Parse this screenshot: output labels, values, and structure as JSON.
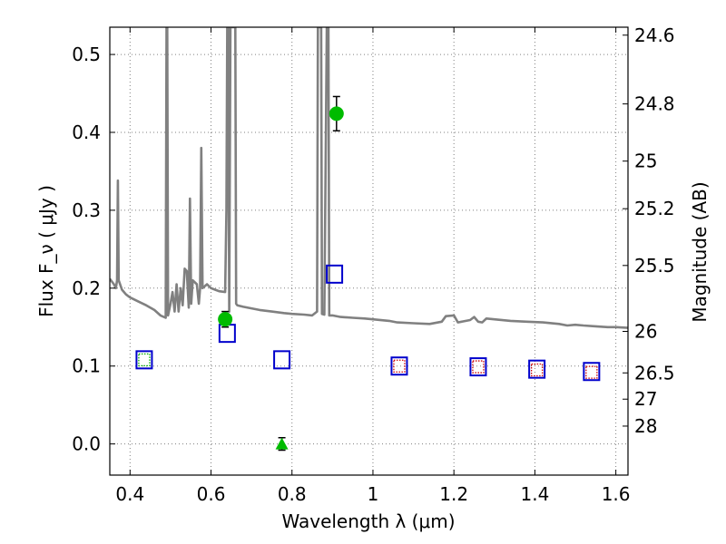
{
  "chart_data": {
    "type": "scatter",
    "title": "",
    "xlabel": "Wavelength  λ (μm)",
    "ylabel": "Flux  F_ν  ( μJy )",
    "y2label": "Magnitude (AB)",
    "xlim": [
      0.35,
      1.63
    ],
    "ylim": [
      -0.04,
      0.535
    ],
    "x_ticks": [
      0.4,
      0.6,
      0.8,
      1.0,
      1.2,
      1.4,
      1.6
    ],
    "x_tick_labels": [
      "0.4",
      "0.6",
      "0.8",
      "1",
      "1.2",
      "1.4",
      "1.6"
    ],
    "y_ticks": [
      0.0,
      0.1,
      0.2,
      0.3,
      0.4,
      0.5
    ],
    "y_tick_labels": [
      "0.0",
      "0.1",
      "0.2",
      "0.3",
      "0.4",
      "0.5"
    ],
    "y2_ticks": [
      {
        "label": "24.6",
        "flux": 0.5248
      },
      {
        "label": "24.8",
        "flux": 0.4365
      },
      {
        "label": "25",
        "flux": 0.3631
      },
      {
        "label": "25.2",
        "flux": 0.302
      },
      {
        "label": "25.5",
        "flux": 0.2291
      },
      {
        "label": "26",
        "flux": 0.1445
      },
      {
        "label": "26.5",
        "flux": 0.0912
      },
      {
        "label": "27",
        "flux": 0.0575
      },
      {
        "label": "28",
        "flux": 0.0229
      }
    ],
    "grid": true,
    "series": [
      {
        "kind": "line",
        "color": "#808080",
        "points": [
          [
            0.35,
            0.212
          ],
          [
            0.36,
            0.205
          ],
          [
            0.365,
            0.2
          ],
          [
            0.368,
            0.21
          ],
          [
            0.37,
            0.338
          ],
          [
            0.372,
            0.21
          ],
          [
            0.38,
            0.198
          ],
          [
            0.39,
            0.192
          ],
          [
            0.4,
            0.188
          ],
          [
            0.42,
            0.183
          ],
          [
            0.44,
            0.178
          ],
          [
            0.46,
            0.172
          ],
          [
            0.475,
            0.165
          ],
          [
            0.488,
            0.162
          ],
          [
            0.49,
            0.535
          ],
          [
            0.492,
            0.535
          ],
          [
            0.494,
            0.165
          ],
          [
            0.5,
            0.18
          ],
          [
            0.505,
            0.195
          ],
          [
            0.51,
            0.17
          ],
          [
            0.515,
            0.205
          ],
          [
            0.52,
            0.17
          ],
          [
            0.525,
            0.2
          ],
          [
            0.53,
            0.178
          ],
          [
            0.535,
            0.225
          ],
          [
            0.54,
            0.222
          ],
          [
            0.545,
            0.175
          ],
          [
            0.548,
            0.315
          ],
          [
            0.551,
            0.18
          ],
          [
            0.555,
            0.21
          ],
          [
            0.565,
            0.205
          ],
          [
            0.57,
            0.18
          ],
          [
            0.573,
            0.2
          ],
          [
            0.576,
            0.38
          ],
          [
            0.579,
            0.2
          ],
          [
            0.59,
            0.205
          ],
          [
            0.6,
            0.2
          ],
          [
            0.61,
            0.198
          ],
          [
            0.62,
            0.196
          ],
          [
            0.635,
            0.195
          ],
          [
            0.638,
            0.3
          ],
          [
            0.64,
            0.535
          ],
          [
            0.642,
            0.535
          ],
          [
            0.645,
            0.17
          ],
          [
            0.648,
            0.535
          ],
          [
            0.652,
            0.535
          ],
          [
            0.655,
            0.535
          ],
          [
            0.658,
            0.535
          ],
          [
            0.66,
            0.535
          ],
          [
            0.662,
            0.18
          ],
          [
            0.665,
            0.178
          ],
          [
            0.68,
            0.176
          ],
          [
            0.7,
            0.174
          ],
          [
            0.72,
            0.172
          ],
          [
            0.75,
            0.17
          ],
          [
            0.78,
            0.168
          ],
          [
            0.8,
            0.167
          ],
          [
            0.83,
            0.166
          ],
          [
            0.85,
            0.165
          ],
          [
            0.862,
            0.17
          ],
          [
            0.864,
            0.535
          ],
          [
            0.872,
            0.535
          ],
          [
            0.874,
            0.167
          ],
          [
            0.88,
            0.166
          ],
          [
            0.886,
            0.535
          ],
          [
            0.89,
            0.535
          ],
          [
            0.892,
            0.165
          ],
          [
            0.9,
            0.165
          ],
          [
            0.92,
            0.163
          ],
          [
            0.95,
            0.162
          ],
          [
            0.98,
            0.161
          ],
          [
            1.0,
            0.16
          ],
          [
            1.04,
            0.158
          ],
          [
            1.06,
            0.156
          ],
          [
            1.1,
            0.155
          ],
          [
            1.14,
            0.154
          ],
          [
            1.17,
            0.157
          ],
          [
            1.18,
            0.164
          ],
          [
            1.2,
            0.165
          ],
          [
            1.21,
            0.156
          ],
          [
            1.24,
            0.159
          ],
          [
            1.25,
            0.163
          ],
          [
            1.26,
            0.157
          ],
          [
            1.27,
            0.156
          ],
          [
            1.28,
            0.161
          ],
          [
            1.3,
            0.16
          ],
          [
            1.34,
            0.158
          ],
          [
            1.38,
            0.157
          ],
          [
            1.42,
            0.156
          ],
          [
            1.46,
            0.154
          ],
          [
            1.48,
            0.152
          ],
          [
            1.5,
            0.153
          ],
          [
            1.52,
            0.152
          ],
          [
            1.55,
            0.151
          ],
          [
            1.58,
            0.15
          ],
          [
            1.6,
            0.15
          ],
          [
            1.63,
            0.149
          ]
        ]
      },
      {
        "kind": "points",
        "marker": "square-open",
        "color": "#0000cc",
        "points": [
          [
            0.435,
            0.108
          ],
          [
            0.64,
            0.142
          ],
          [
            0.775,
            0.108
          ],
          [
            0.905,
            0.218
          ],
          [
            1.065,
            0.1
          ],
          [
            1.26,
            0.099
          ],
          [
            1.405,
            0.096
          ],
          [
            1.54,
            0.093
          ]
        ]
      },
      {
        "kind": "points",
        "marker": "square-open-dotted",
        "color": "#cc0000",
        "points": [
          [
            1.065,
            0.1
          ],
          [
            1.26,
            0.099
          ],
          [
            1.405,
            0.095
          ],
          [
            1.54,
            0.092
          ]
        ]
      },
      {
        "kind": "points",
        "marker": "square-open-dotted",
        "color": "#00aa00",
        "points": [
          [
            0.435,
            0.108
          ]
        ]
      },
      {
        "kind": "points",
        "marker": "circle-filled",
        "color": "#00bb00",
        "points": [
          [
            0.635,
            0.16,
            0.01
          ],
          [
            0.91,
            0.424,
            0.022
          ]
        ]
      },
      {
        "kind": "points",
        "marker": "triangle-filled",
        "color": "#00bb00",
        "points": [
          [
            0.775,
            0.0,
            0.008
          ]
        ]
      }
    ]
  }
}
